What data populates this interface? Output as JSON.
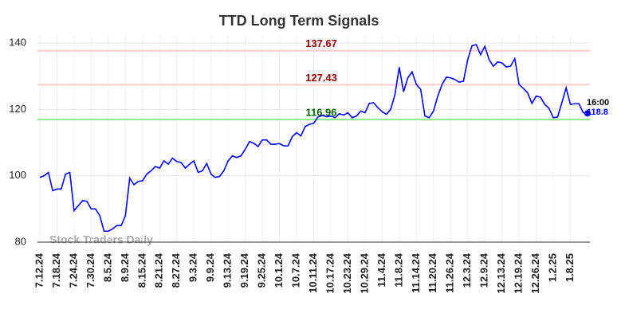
{
  "chart_data": {
    "type": "line",
    "title": "TTD Long Term Signals",
    "watermark": "Stock Traders Daily",
    "last_time": "16:00",
    "color": "#0000ff",
    "ylim": [
      80,
      140
    ],
    "yticks": [
      80,
      100,
      120,
      140
    ],
    "grid": true,
    "hlines": [
      {
        "value": 137.67,
        "color": "#ffcccc",
        "label_color": "#8b0000"
      },
      {
        "value": 127.43,
        "color": "#ffcccc",
        "label_color": "#8b0000"
      },
      {
        "value": 116.96,
        "color": "#90ee90",
        "label_color": "#006400"
      }
    ],
    "categories": [
      "7.12.24",
      null,
      null,
      null,
      "7.18.24",
      null,
      null,
      null,
      "7.24.24",
      null,
      null,
      null,
      "7.30.24",
      null,
      null,
      null,
      "8.5.24",
      null,
      null,
      null,
      "8.9.24",
      null,
      null,
      null,
      "8.15.24",
      null,
      null,
      null,
      "8.21.24",
      null,
      null,
      null,
      "8.27.24",
      null,
      null,
      null,
      "9.3.24",
      null,
      null,
      null,
      "9.9.24",
      null,
      null,
      null,
      "9.13.24",
      null,
      null,
      null,
      "9.19.24",
      null,
      null,
      null,
      "9.25.24",
      null,
      null,
      null,
      "10.1.24",
      null,
      null,
      null,
      "10.7.24",
      null,
      null,
      null,
      "10.11.24",
      null,
      null,
      null,
      "10.17.24",
      null,
      null,
      null,
      "10.23.24",
      null,
      null,
      null,
      "10.29.24",
      null,
      null,
      null,
      "11.4.24",
      null,
      null,
      null,
      "11.8.24",
      null,
      null,
      null,
      "11.14.24",
      null,
      null,
      null,
      "11.20.24",
      null,
      null,
      null,
      "11.26.24",
      null,
      null,
      null,
      "12.3.24",
      null,
      null,
      null,
      "12.9.24",
      null,
      null,
      null,
      "12.13.24",
      null,
      null,
      null,
      "12.19.24",
      null,
      null,
      null,
      "12.26.24",
      null,
      null,
      null,
      "1.2.25",
      null,
      null,
      null,
      "1.8.25",
      null,
      null,
      null,
      null
    ],
    "values": [
      99.5,
      100,
      101,
      95.5,
      96,
      96,
      100.5,
      101,
      89.5,
      91,
      92.5,
      92.3,
      90,
      90,
      88,
      83.3,
      83.3,
      84,
      85,
      85,
      88,
      99.3,
      97.3,
      98.3,
      98.5,
      100.5,
      101.5,
      102.8,
      102.3,
      104.5,
      103.5,
      105.3,
      104.3,
      104,
      102.3,
      103.5,
      104.5,
      101,
      101.5,
      103.7,
      100.5,
      99.5,
      99.8,
      101.5,
      104.5,
      106,
      105.5,
      106,
      108,
      110.3,
      109.8,
      108.8,
      110.8,
      110.8,
      109.5,
      109.5,
      109.7,
      109,
      109,
      111.8,
      113,
      112,
      114.8,
      115.5,
      115.8,
      117.7,
      118.2,
      117.8,
      118,
      117.5,
      118.7,
      118.3,
      119,
      117.5,
      118,
      119.5,
      119,
      121.8,
      122,
      120.5,
      119.3,
      118.5,
      120,
      124.5,
      132.7,
      125.3,
      129.5,
      131.3,
      127.5,
      126,
      118,
      117.5,
      119.5,
      124,
      127.5,
      129.7,
      129.5,
      129,
      128.2,
      128.5,
      135,
      139.2,
      139.5,
      136.5,
      139,
      135,
      133,
      134.3,
      134,
      132.8,
      133,
      135.3,
      127.5,
      126.3,
      125,
      121.8,
      124,
      123.7,
      121.5,
      120.3,
      117.5,
      117.7,
      122,
      126.5,
      121.5,
      121.7,
      121.7,
      119,
      118.8
    ]
  }
}
